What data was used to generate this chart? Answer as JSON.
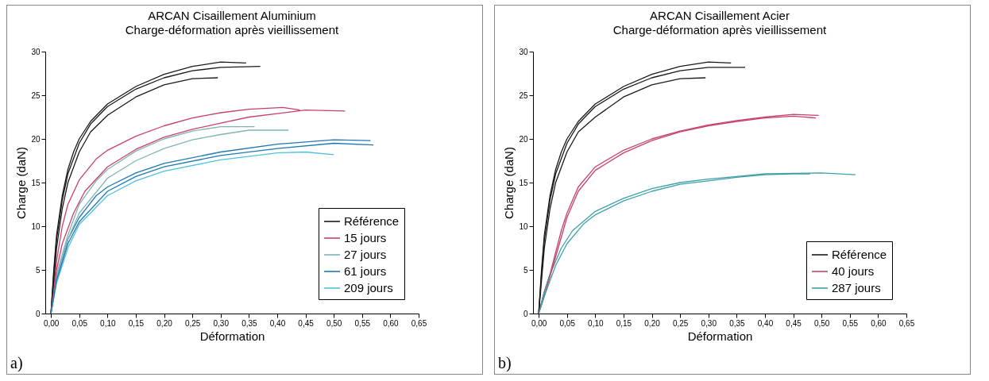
{
  "chart_data": [
    {
      "type": "line",
      "title": "ARCAN Cisaillement Aluminium",
      "subtitle": "Charge-déformation après vieillissement",
      "xlabel": "Déformation",
      "ylabel": "Charge (daN)",
      "annotations": [
        "a)"
      ],
      "legend": "bottom right",
      "xlim": [
        -0.01,
        0.65
      ],
      "ylim": [
        0,
        30
      ],
      "xticks": [
        {
          "value": 0,
          "label": "0,00"
        },
        {
          "value": 0.05,
          "label": "0,05"
        },
        {
          "value": 0.1,
          "label": "0,10"
        },
        {
          "value": 0.15,
          "label": "0,15"
        },
        {
          "value": 0.2,
          "label": "0,20"
        },
        {
          "value": 0.25,
          "label": "0,25"
        },
        {
          "value": 0.3,
          "label": "0,30"
        },
        {
          "value": 0.35,
          "label": "0,35"
        },
        {
          "value": 0.4,
          "label": "0,40"
        },
        {
          "value": 0.45,
          "label": "0,45"
        },
        {
          "value": 0.5,
          "label": "0,50"
        },
        {
          "value": 0.55,
          "label": "0,55"
        },
        {
          "value": 0.6,
          "label": "0,60"
        },
        {
          "value": 0.65,
          "label": "0,65"
        }
      ],
      "yticks": [
        0,
        5,
        10,
        15,
        20,
        25,
        30
      ],
      "series": [
        {
          "name": "Référence",
          "color": "#1a1a1a",
          "x": [
            0,
            0.005,
            0.01,
            0.02,
            0.03,
            0.04,
            0.05,
            0.07,
            0.1,
            0.15,
            0.2,
            0.25,
            0.3,
            0.345
          ],
          "values": [
            0,
            5,
            9,
            13.5,
            16.5,
            18.5,
            20,
            22,
            24,
            26,
            27.4,
            28.3,
            28.8,
            28.7
          ]
        },
        {
          "color": "#1a1a1a",
          "x": [
            0,
            0.005,
            0.01,
            0.02,
            0.03,
            0.05,
            0.07,
            0.1,
            0.15,
            0.2,
            0.25,
            0.3,
            0.37
          ],
          "values": [
            0,
            4.5,
            8.5,
            13,
            16,
            19.5,
            21.7,
            23.7,
            25.7,
            27,
            27.8,
            28.2,
            28.3
          ]
        },
        {
          "color": "#1a1a1a",
          "x": [
            0,
            0.01,
            0.02,
            0.03,
            0.05,
            0.07,
            0.1,
            0.15,
            0.2,
            0.25,
            0.295
          ],
          "values": [
            0,
            7.5,
            12,
            15,
            18.5,
            20.8,
            22.7,
            24.8,
            26.2,
            26.9,
            27
          ]
        },
        {
          "name": "15 jours",
          "color": "#c8416a",
          "x": [
            0,
            0.01,
            0.02,
            0.03,
            0.05,
            0.08,
            0.1,
            0.15,
            0.2,
            0.25,
            0.3,
            0.35,
            0.41,
            0.44
          ],
          "values": [
            0,
            6,
            10,
            12.5,
            15.3,
            17.7,
            18.7,
            20.3,
            21.5,
            22.4,
            23,
            23.4,
            23.6,
            23.3
          ]
        },
        {
          "color": "#c8416a",
          "x": [
            0,
            0.01,
            0.02,
            0.04,
            0.06,
            0.1,
            0.15,
            0.2,
            0.25,
            0.3,
            0.35,
            0.4,
            0.45,
            0.52
          ],
          "values": [
            0,
            5,
            8,
            11.5,
            14,
            16.8,
            18.8,
            20.2,
            21.1,
            21.8,
            22.5,
            22.9,
            23.3,
            23.2
          ]
        },
        {
          "name": "27 jours",
          "color": "#7fb4b8",
          "x": [
            0,
            0.01,
            0.03,
            0.05,
            0.08,
            0.1,
            0.15,
            0.2,
            0.25,
            0.3,
            0.36
          ],
          "values": [
            0,
            4.5,
            9,
            12.5,
            15.2,
            16.5,
            18.6,
            20,
            20.9,
            21.4,
            21.4
          ]
        },
        {
          "color": "#7fb4b8",
          "x": [
            0,
            0.01,
            0.03,
            0.05,
            0.1,
            0.15,
            0.2,
            0.25,
            0.3,
            0.35,
            0.42
          ],
          "values": [
            0,
            4,
            8.5,
            11.5,
            15.5,
            17.5,
            18.9,
            19.9,
            20.5,
            21,
            21
          ]
        },
        {
          "name": "61 jours",
          "color": "#1f78b4",
          "x": [
            0,
            0.01,
            0.03,
            0.05,
            0.08,
            0.1,
            0.15,
            0.2,
            0.3,
            0.4,
            0.5,
            0.565
          ],
          "values": [
            0,
            4,
            8.5,
            11,
            13.5,
            14.5,
            16.1,
            17.2,
            18.5,
            19.4,
            19.9,
            19.8
          ]
        },
        {
          "color": "#1f78b4",
          "x": [
            0,
            0.01,
            0.03,
            0.05,
            0.1,
            0.15,
            0.2,
            0.3,
            0.4,
            0.5,
            0.57
          ],
          "values": [
            0,
            3.8,
            8,
            10.5,
            14,
            15.7,
            16.8,
            18.1,
            18.9,
            19.5,
            19.3
          ]
        },
        {
          "name": "209 jours",
          "color": "#4fc0e0",
          "x": [
            0,
            0.01,
            0.03,
            0.05,
            0.1,
            0.15,
            0.2,
            0.3,
            0.4,
            0.45,
            0.5
          ],
          "values": [
            0,
            3.5,
            7.5,
            10.2,
            13.5,
            15.2,
            16.3,
            17.6,
            18.4,
            18.5,
            18.2
          ]
        }
      ]
    },
    {
      "type": "line",
      "title": "ARCAN Cisaillement Acier",
      "subtitle": "Charge-déformation après vieillissement",
      "xlabel": "Déformation",
      "ylabel": "Charge (daN)",
      "annotations": [
        "b)"
      ],
      "legend": "bottom right",
      "xlim": [
        -0.01,
        0.65
      ],
      "ylim": [
        0,
        30
      ],
      "xticks": [
        {
          "value": 0,
          "label": "0,00"
        },
        {
          "value": 0.05,
          "label": "0,05"
        },
        {
          "value": 0.1,
          "label": "0,10"
        },
        {
          "value": 0.15,
          "label": "0,15"
        },
        {
          "value": 0.2,
          "label": "0,20"
        },
        {
          "value": 0.25,
          "label": "0,25"
        },
        {
          "value": 0.3,
          "label": "0,30"
        },
        {
          "value": 0.35,
          "label": "0,35"
        },
        {
          "value": 0.4,
          "label": "0,40"
        },
        {
          "value": 0.45,
          "label": "0,45"
        },
        {
          "value": 0.5,
          "label": "0,50"
        },
        {
          "value": 0.55,
          "label": "0,55"
        },
        {
          "value": 0.6,
          "label": "0,60"
        },
        {
          "value": 0.65,
          "label": "0,65"
        }
      ],
      "yticks": [
        0,
        5,
        10,
        15,
        20,
        25,
        30
      ],
      "series": [
        {
          "name": "Référence",
          "color": "#1a1a1a",
          "x": [
            0,
            0.005,
            0.01,
            0.02,
            0.03,
            0.04,
            0.05,
            0.07,
            0.1,
            0.15,
            0.2,
            0.25,
            0.3,
            0.34
          ],
          "values": [
            0,
            5,
            9,
            13.5,
            16.5,
            18.5,
            20,
            22,
            24,
            26,
            27.4,
            28.3,
            28.8,
            28.7
          ]
        },
        {
          "color": "#1a1a1a",
          "x": [
            0,
            0.005,
            0.01,
            0.02,
            0.03,
            0.05,
            0.07,
            0.1,
            0.15,
            0.2,
            0.25,
            0.3,
            0.365
          ],
          "values": [
            0,
            4.5,
            8.5,
            13,
            16,
            19.5,
            21.7,
            23.7,
            25.7,
            27,
            27.8,
            28.2,
            28.2
          ]
        },
        {
          "color": "#1a1a1a",
          "x": [
            0,
            0.01,
            0.02,
            0.03,
            0.05,
            0.07,
            0.1,
            0.15,
            0.2,
            0.25,
            0.295
          ],
          "values": [
            0,
            7.5,
            12,
            15,
            18.5,
            20.8,
            22.5,
            24.8,
            26.2,
            26.9,
            27
          ]
        },
        {
          "name": "40 jours",
          "color": "#c8416a",
          "x": [
            0,
            0.01,
            0.02,
            0.03,
            0.04,
            0.05,
            0.07,
            0.1,
            0.15,
            0.2,
            0.25,
            0.3,
            0.35,
            0.4,
            0.45,
            0.495
          ],
          "values": [
            0,
            2.5,
            4.5,
            7,
            9.5,
            11.5,
            14.5,
            16.8,
            18.7,
            20,
            20.9,
            21.6,
            22.1,
            22.5,
            22.8,
            22.7
          ]
        },
        {
          "color": "#c8416a",
          "x": [
            0,
            0.01,
            0.03,
            0.05,
            0.07,
            0.1,
            0.15,
            0.2,
            0.25,
            0.3,
            0.35,
            0.4,
            0.45,
            0.49
          ],
          "values": [
            0,
            2,
            6.5,
            11,
            14,
            16.4,
            18.4,
            19.8,
            20.8,
            21.5,
            22,
            22.4,
            22.6,
            22.4
          ]
        },
        {
          "name": "287 jours",
          "color": "#3fa0a8",
          "x": [
            0,
            0.01,
            0.02,
            0.04,
            0.06,
            0.1,
            0.15,
            0.2,
            0.25,
            0.3,
            0.35,
            0.4,
            0.5,
            0.56
          ],
          "values": [
            0,
            2.5,
            4.5,
            7.5,
            9.5,
            11.7,
            13.2,
            14.3,
            15,
            15.4,
            15.7,
            16,
            16.1,
            15.9
          ]
        },
        {
          "color": "#3fa0a8",
          "x": [
            0,
            0.01,
            0.03,
            0.05,
            0.08,
            0.1,
            0.15,
            0.2,
            0.25,
            0.3,
            0.35,
            0.4,
            0.45,
            0.48
          ],
          "values": [
            0,
            2,
            5.5,
            8,
            10.3,
            11.3,
            12.9,
            14,
            14.8,
            15.2,
            15.6,
            15.9,
            16,
            16
          ]
        }
      ]
    }
  ]
}
